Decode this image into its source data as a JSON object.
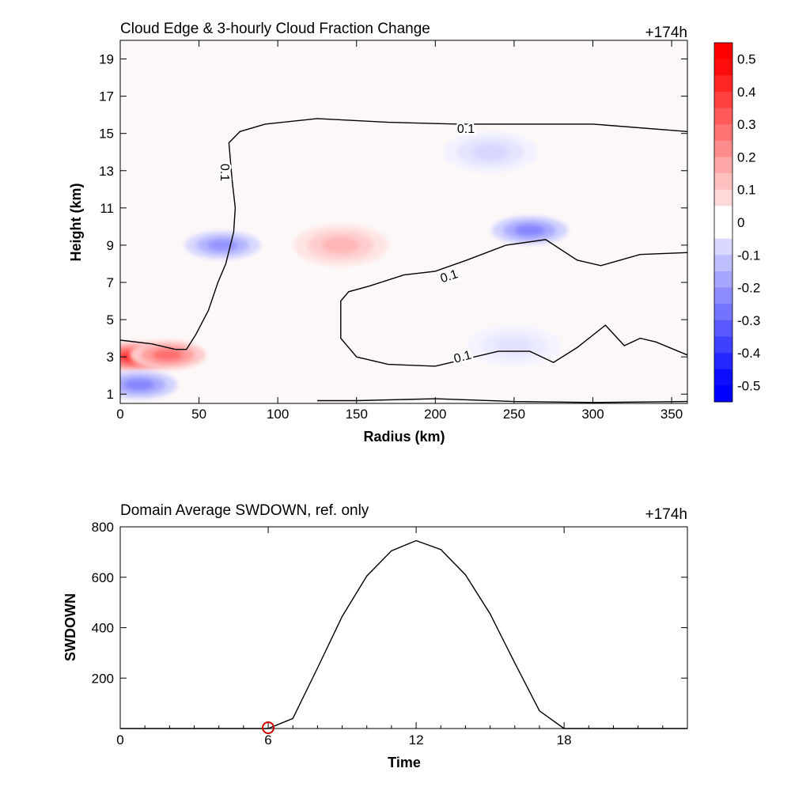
{
  "chart_data": [
    {
      "type": "heatmap",
      "title": "Cloud Edge & 3-hourly Cloud Fraction Change",
      "time_label": "+174h",
      "xlabel": "Radius (km)",
      "ylabel": "Height (km)",
      "xlim": [
        0,
        360
      ],
      "ylim": [
        0.5,
        20
      ],
      "xticks": [
        "0",
        "50",
        "100",
        "150",
        "200",
        "250",
        "300",
        "350"
      ],
      "yticks": [
        "1",
        "3",
        "5",
        "7",
        "9",
        "11",
        "13",
        "15",
        "17",
        "19"
      ],
      "colorbar": {
        "ticks": [
          "0.5",
          "0.4",
          "0.3",
          "0.2",
          "0.1",
          "0",
          "-0.1",
          "-0.2",
          "-0.3",
          "-0.4",
          "-0.5"
        ],
        "range": [
          -0.55,
          0.55
        ],
        "pos_color": "#ff0000",
        "neg_color": "#0000ff"
      },
      "contour_level": "0.1",
      "contour_labels": [
        "0.1",
        "0.1",
        "0.1",
        "0.1"
      ],
      "features": [
        {
          "r": 10,
          "z": 3.0,
          "value": 0.45
        },
        {
          "r": 30,
          "z": 3.1,
          "value": 0.3
        },
        {
          "r": 12,
          "z": 1.5,
          "value": -0.25
        },
        {
          "r": 65,
          "z": 9.0,
          "value": -0.22
        },
        {
          "r": 140,
          "z": 9.0,
          "value": 0.15
        },
        {
          "r": 260,
          "z": 9.8,
          "value": -0.25
        },
        {
          "r": 235,
          "z": 14.0,
          "value": -0.08
        },
        {
          "r": 250,
          "z": 3.6,
          "value": -0.06
        }
      ],
      "contours": [
        [
          [
            0,
            3.9
          ],
          [
            20,
            3.7
          ],
          [
            35,
            3.4
          ],
          [
            42,
            3.4
          ],
          [
            48,
            4.2
          ],
          [
            56,
            5.5
          ],
          [
            62,
            7.0
          ],
          [
            67,
            8.0
          ],
          [
            72,
            9.7
          ],
          [
            73,
            11.0
          ],
          [
            71,
            12.5
          ],
          [
            69,
            14.5
          ],
          [
            76,
            15.1
          ],
          [
            92,
            15.5
          ],
          [
            125,
            15.8
          ],
          [
            170,
            15.6
          ],
          [
            215,
            15.5
          ],
          [
            260,
            15.5
          ],
          [
            300,
            15.5
          ],
          [
            360,
            15.1
          ]
        ],
        [
          [
            360,
            8.6
          ],
          [
            330,
            8.5
          ],
          [
            305,
            7.9
          ],
          [
            290,
            8.2
          ],
          [
            270,
            9.3
          ],
          [
            245,
            9.0
          ],
          [
            220,
            8.2
          ],
          [
            200,
            7.6
          ],
          [
            180,
            7.4
          ],
          [
            158,
            6.8
          ],
          [
            145,
            6.5
          ],
          [
            140,
            6.0
          ],
          [
            140,
            4.0
          ],
          [
            150,
            3.0
          ],
          [
            170,
            2.6
          ],
          [
            200,
            2.5
          ],
          [
            240,
            3.3
          ],
          [
            260,
            3.3
          ],
          [
            275,
            2.7
          ],
          [
            290,
            3.5
          ],
          [
            308,
            4.7
          ],
          [
            320,
            3.6
          ],
          [
            330,
            4.0
          ],
          [
            340,
            3.8
          ],
          [
            360,
            3.1
          ]
        ],
        [
          [
            125,
            0.65
          ],
          [
            150,
            0.65
          ],
          [
            200,
            0.75
          ],
          [
            250,
            0.6
          ],
          [
            300,
            0.55
          ],
          [
            360,
            0.6
          ]
        ]
      ]
    },
    {
      "type": "line",
      "title": "Domain Average SWDOWN, ref. only",
      "time_label": "+174h",
      "xlabel": "Time",
      "ylabel": "SWDOWN",
      "xlim": [
        0,
        23
      ],
      "ylim": [
        0,
        800
      ],
      "xticks": [
        "0",
        "6",
        "12",
        "18"
      ],
      "yticks": [
        "200",
        "400",
        "600",
        "800"
      ],
      "x": [
        0,
        1,
        2,
        3,
        4,
        5,
        6,
        7,
        8,
        9,
        10,
        11,
        12,
        13,
        14,
        15,
        16,
        17,
        18,
        19,
        20,
        21,
        22,
        23
      ],
      "series": [
        {
          "values": [
            0,
            0,
            0,
            0,
            0,
            0,
            0,
            40,
            240,
            445,
            605,
            705,
            745,
            710,
            610,
            455,
            260,
            70,
            0,
            0,
            0,
            0,
            0,
            0
          ]
        }
      ],
      "marker": {
        "x": 6,
        "y": 0,
        "color": "#cc0000"
      }
    }
  ]
}
